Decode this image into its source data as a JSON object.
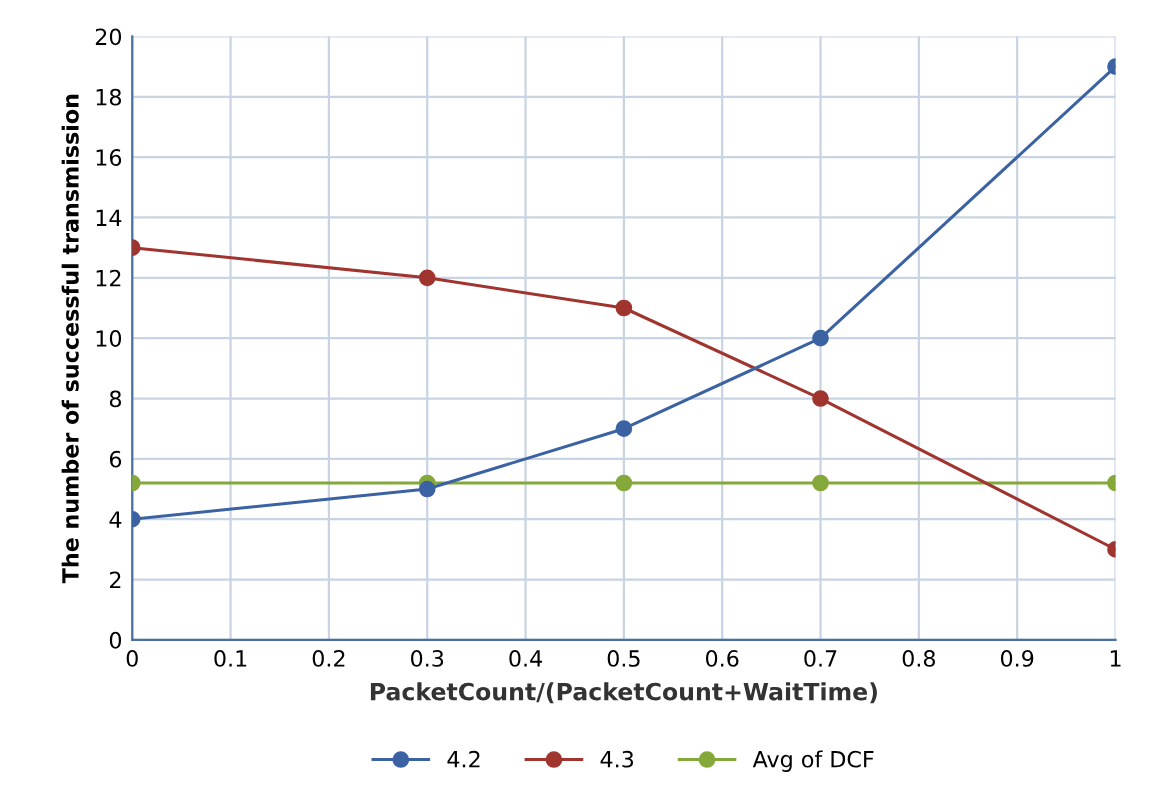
{
  "chart_data": {
    "type": "line",
    "xlabel": "PacketCount/(PacketCount+WaitTime)",
    "ylabel": "The number of successful transmission",
    "x": [
      0,
      0.3,
      0.5,
      0.7,
      1
    ],
    "series": [
      {
        "name": "4.2",
        "color": "#3b62a3",
        "values": [
          4,
          5,
          7,
          10,
          19
        ]
      },
      {
        "name": "4.3",
        "color": "#a0342f",
        "values": [
          13,
          12,
          11,
          8,
          3
        ]
      },
      {
        "name": "Avg of DCF",
        "color": "#84a83a",
        "values": [
          5.2,
          5.2,
          5.2,
          5.2,
          5.2
        ]
      }
    ],
    "xlim": [
      0,
      1
    ],
    "xticks": [
      0,
      0.1,
      0.2,
      0.3,
      0.4,
      0.5,
      0.6,
      0.7,
      0.8,
      0.9,
      1
    ],
    "ylim": [
      0,
      20
    ],
    "yticks": [
      0,
      2,
      4,
      6,
      8,
      10,
      12,
      14,
      16,
      18,
      20
    ],
    "grid": true,
    "legend": "bottom",
    "marker": "circle",
    "line_style": "solid"
  }
}
